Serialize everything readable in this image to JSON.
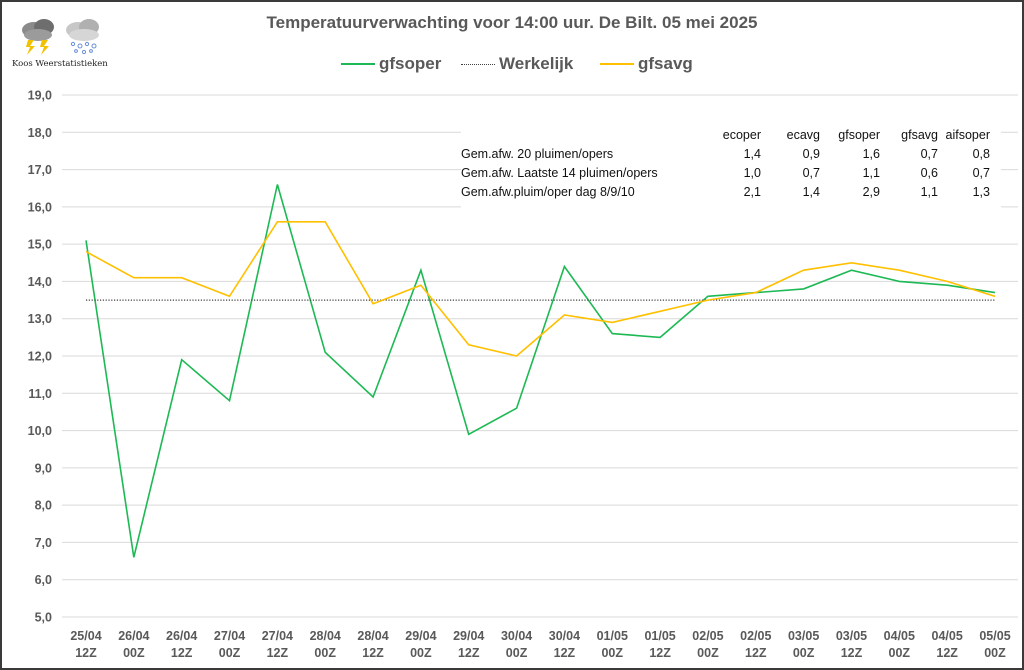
{
  "logo": {
    "text": "Koos Weerstatistieken",
    "icons": [
      "thunderstorm-cloud-icon",
      "snow-cloud-icon"
    ]
  },
  "colors": {
    "gfsoper": "#1db954",
    "gfsavg": "#ffc000",
    "werkelijk": "#404040",
    "text": "#595959",
    "grid": "#d9d9d9"
  },
  "stats_table": {
    "headers": [
      "ecoper",
      "ecavg",
      "gfsoper",
      "gfsavg",
      "aifsoper"
    ],
    "rows": [
      {
        "label": "Gem.afw. 20 pluimen/opers",
        "values": [
          "1,4",
          "0,9",
          "1,6",
          "0,7",
          "0,8"
        ]
      },
      {
        "label": "Gem.afw. Laatste 14 pluimen/opers",
        "values": [
          "1,0",
          "0,7",
          "1,1",
          "0,6",
          "0,7"
        ]
      },
      {
        "label": "Gem.afw.pluim/oper dag 8/9/10",
        "values": [
          "2,1",
          "1,4",
          "2,9",
          "1,1",
          "1,3"
        ]
      }
    ]
  },
  "chart_data": {
    "type": "line",
    "title": "Temperatuurverwachting voor 14:00 uur. De Bilt. 05 mei 2025",
    "xlabel": "",
    "ylabel": "",
    "ylim": [
      5.0,
      19.0
    ],
    "ytick_step": 1.0,
    "yticks": [
      "5,0",
      "6,0",
      "7,0",
      "8,0",
      "9,0",
      "10,0",
      "11,0",
      "12,0",
      "13,0",
      "14,0",
      "15,0",
      "16,0",
      "17,0",
      "18,0",
      "19,0"
    ],
    "grid": true,
    "legend_position": "top-center",
    "categories": [
      [
        "25/04",
        "12Z"
      ],
      [
        "26/04",
        "00Z"
      ],
      [
        "26/04",
        "12Z"
      ],
      [
        "27/04",
        "00Z"
      ],
      [
        "27/04",
        "12Z"
      ],
      [
        "28/04",
        "00Z"
      ],
      [
        "28/04",
        "12Z"
      ],
      [
        "29/04",
        "00Z"
      ],
      [
        "29/04",
        "12Z"
      ],
      [
        "30/04",
        "00Z"
      ],
      [
        "30/04",
        "12Z"
      ],
      [
        "01/05",
        "00Z"
      ],
      [
        "01/05",
        "12Z"
      ],
      [
        "02/05",
        "00Z"
      ],
      [
        "02/05",
        "12Z"
      ],
      [
        "03/05",
        "00Z"
      ],
      [
        "03/05",
        "12Z"
      ],
      [
        "04/05",
        "00Z"
      ],
      [
        "04/05",
        "12Z"
      ],
      [
        "05/05",
        "00Z"
      ]
    ],
    "series": [
      {
        "name": "gfsoper",
        "style": "solid",
        "color": "#1db954",
        "values": [
          15.1,
          6.6,
          11.9,
          10.8,
          16.6,
          12.1,
          10.9,
          14.3,
          9.9,
          10.6,
          14.4,
          12.6,
          12.5,
          13.6,
          13.7,
          13.8,
          14.3,
          14.0,
          13.9,
          13.7
        ]
      },
      {
        "name": "Werkelijk",
        "style": "dotted",
        "color": "#404040",
        "values": [
          13.5,
          13.5,
          13.5,
          13.5,
          13.5,
          13.5,
          13.5,
          13.5,
          13.5,
          13.5,
          13.5,
          13.5,
          13.5,
          13.5,
          13.5,
          13.5,
          13.5,
          13.5,
          13.5,
          13.5
        ]
      },
      {
        "name": "gfsavg",
        "style": "solid",
        "color": "#ffc000",
        "values": [
          14.8,
          14.1,
          14.1,
          13.6,
          15.6,
          15.6,
          13.4,
          13.9,
          12.3,
          12.0,
          13.1,
          12.9,
          13.2,
          13.5,
          13.7,
          14.3,
          14.5,
          14.3,
          14.0,
          13.6
        ]
      }
    ]
  }
}
